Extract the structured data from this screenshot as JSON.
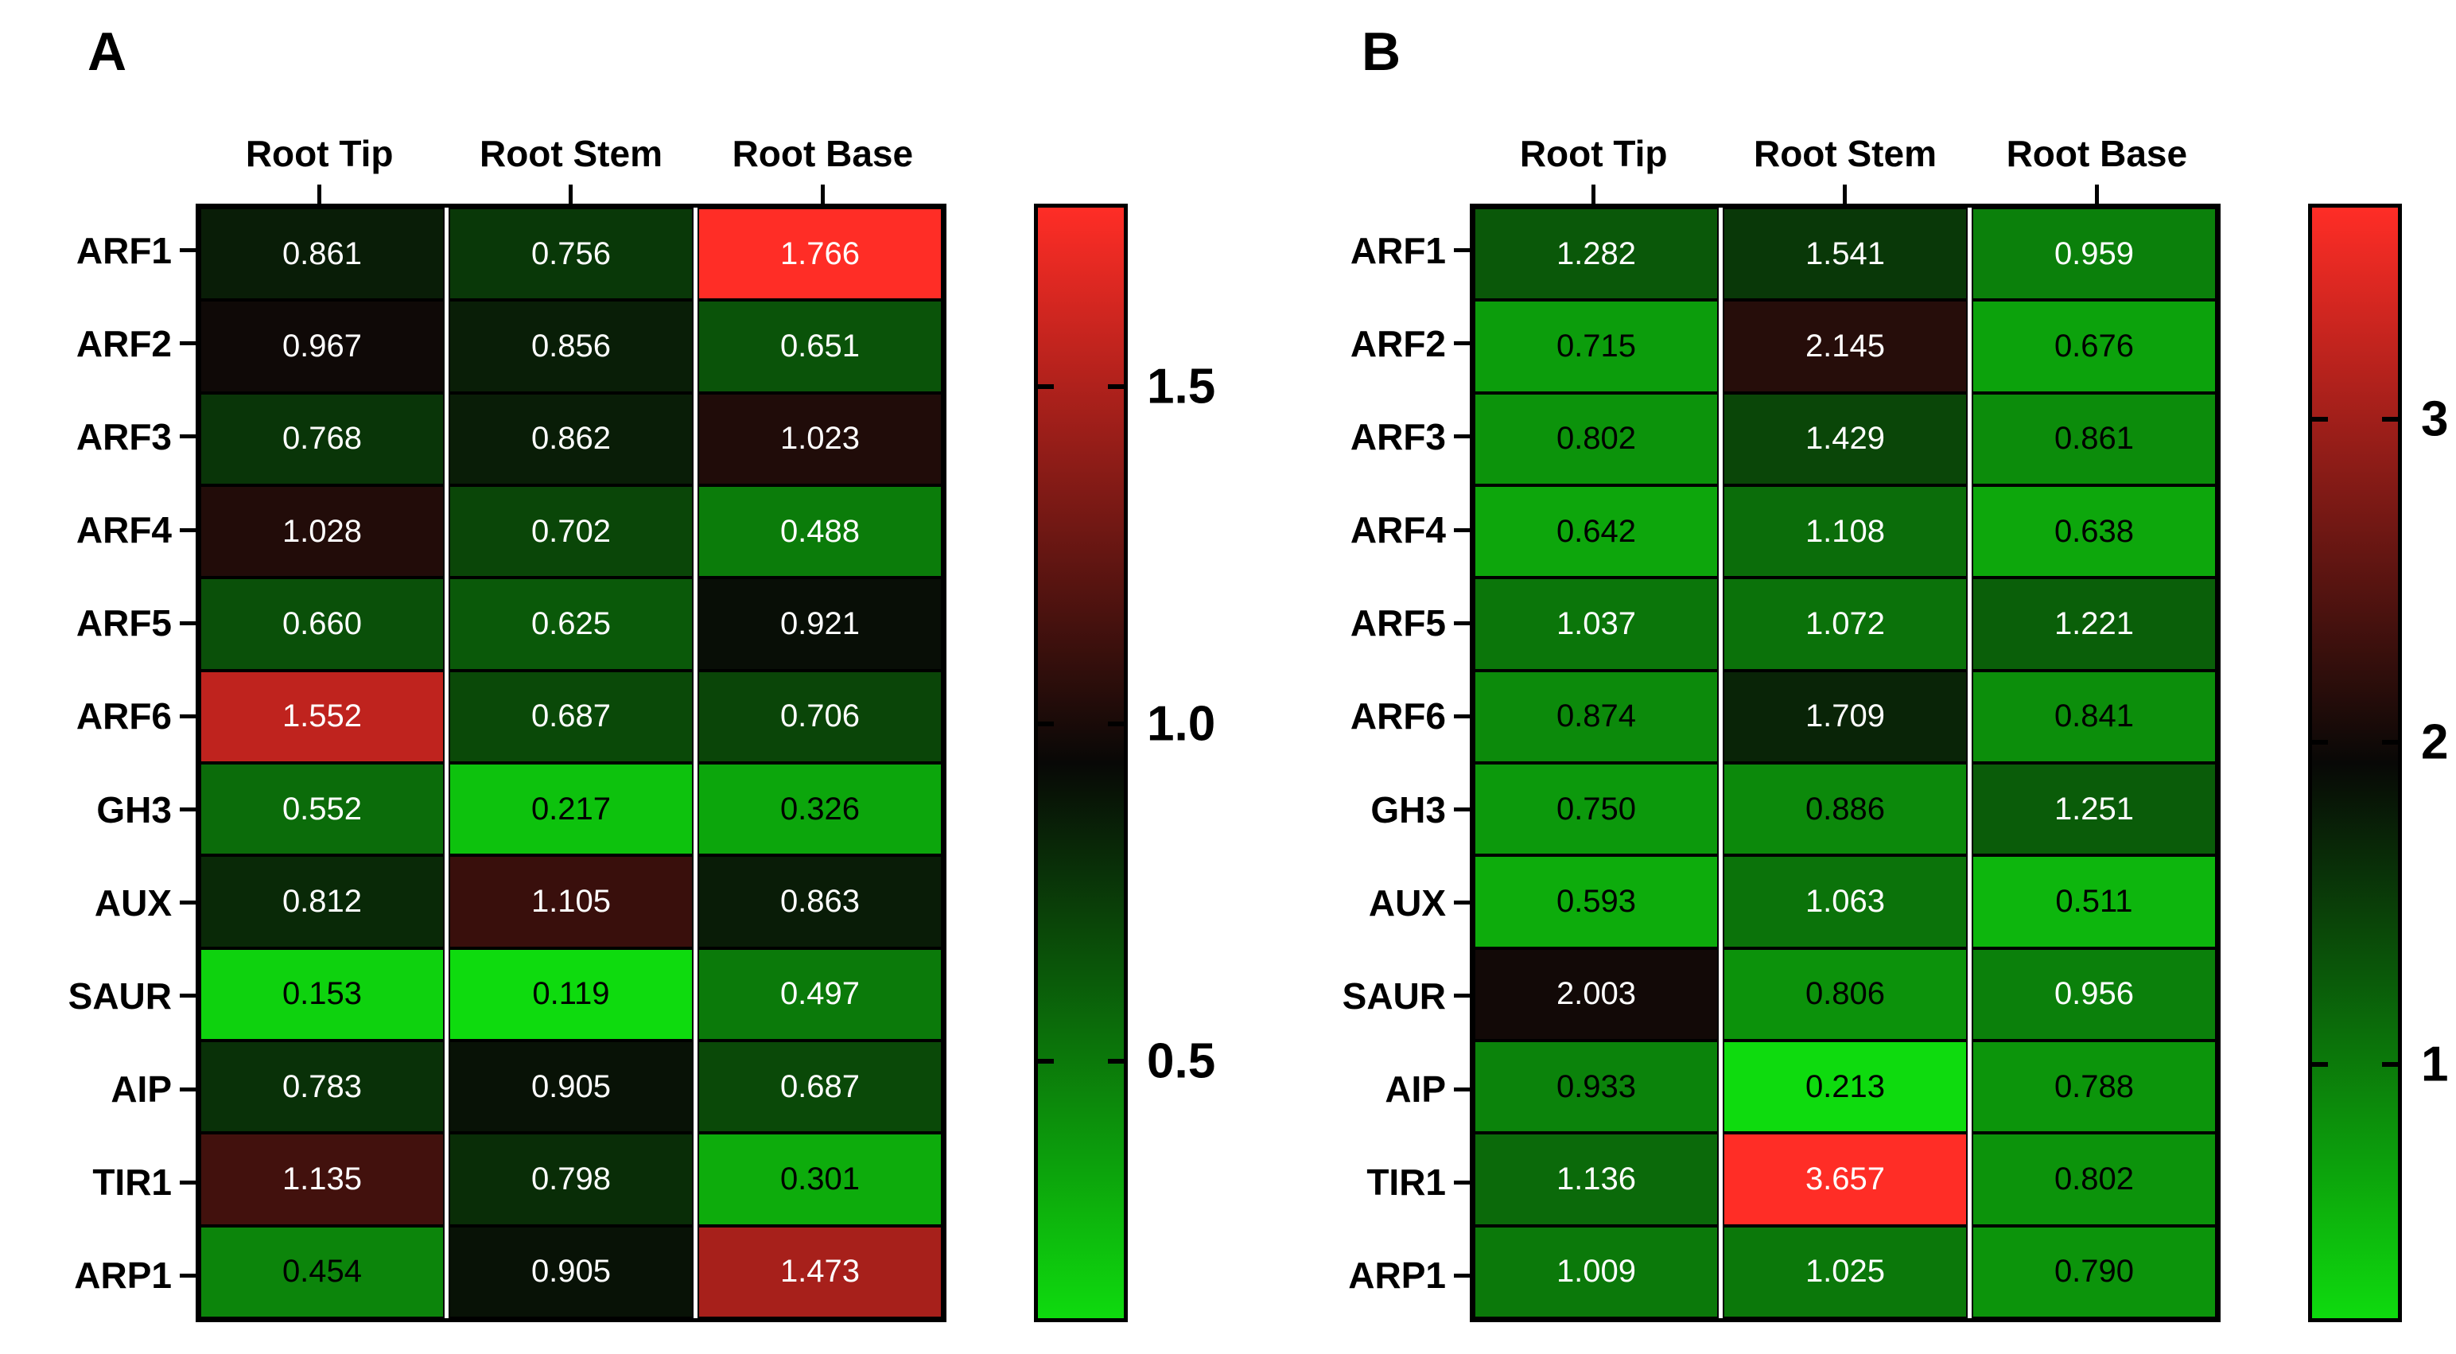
{
  "figure": {
    "background": "#FFFFFF",
    "panel_labels": [
      "A",
      "B"
    ]
  },
  "chart_data": [
    {
      "type": "heatmap",
      "panel": "A",
      "columns": [
        "Root Tip",
        "Root Stem",
        "Root Base"
      ],
      "rows": [
        "ARF1",
        "ARF2",
        "ARF3",
        "ARF4",
        "ARF5",
        "ARF6",
        "GH3",
        "AUX",
        "SAUR",
        "AIP",
        "TIR1",
        "ARP1"
      ],
      "values": [
        [
          0.861,
          0.756,
          1.766
        ],
        [
          0.967,
          0.856,
          0.651
        ],
        [
          0.768,
          0.862,
          1.023
        ],
        [
          1.028,
          0.702,
          0.488
        ],
        [
          0.66,
          0.625,
          0.921
        ],
        [
          1.552,
          0.687,
          0.706
        ],
        [
          0.552,
          0.217,
          0.326
        ],
        [
          0.812,
          1.105,
          0.863
        ],
        [
          0.153,
          0.119,
          0.497
        ],
        [
          0.783,
          0.905,
          0.687
        ],
        [
          1.135,
          0.798,
          0.301
        ],
        [
          0.454,
          0.905,
          1.473
        ]
      ],
      "value_decimals": 3,
      "scale": {
        "min": 0.119,
        "max": 1.766,
        "ticks": [
          {
            "value": 1.5,
            "label": "1.5"
          },
          {
            "value": 1.0,
            "label": "1.0"
          },
          {
            "value": 0.5,
            "label": "0.5"
          }
        ]
      },
      "colors": {
        "low": "#0EDB0E",
        "mid": "#080806",
        "high": "#FF2D26"
      },
      "legend_position": "right",
      "grid": "cell-borders"
    },
    {
      "type": "heatmap",
      "panel": "B",
      "columns": [
        "Root Tip",
        "Root Stem",
        "Root Base"
      ],
      "rows": [
        "ARF1",
        "ARF2",
        "ARF3",
        "ARF4",
        "ARF5",
        "ARF6",
        "GH3",
        "AUX",
        "SAUR",
        "AIP",
        "TIR1",
        "ARP1"
      ],
      "values": [
        [
          1.282,
          1.541,
          0.959
        ],
        [
          0.715,
          2.145,
          0.676
        ],
        [
          0.802,
          1.429,
          0.861
        ],
        [
          0.642,
          1.108,
          0.638
        ],
        [
          1.037,
          1.072,
          1.221
        ],
        [
          0.874,
          1.709,
          0.841
        ],
        [
          0.75,
          0.886,
          1.251
        ],
        [
          0.593,
          1.063,
          0.511
        ],
        [
          2.003,
          0.806,
          0.956
        ],
        [
          0.933,
          0.213,
          0.788
        ],
        [
          1.136,
          3.657,
          0.802
        ],
        [
          1.009,
          1.025,
          0.79
        ]
      ],
      "value_decimals": 3,
      "scale": {
        "min": 0.213,
        "max": 3.657,
        "ticks": [
          {
            "value": 3,
            "label": "3"
          },
          {
            "value": 2,
            "label": "2"
          },
          {
            "value": 1,
            "label": "1"
          }
        ]
      },
      "colors": {
        "low": "#0EDB0E",
        "mid": "#080806",
        "high": "#FF2D26"
      },
      "legend_position": "right",
      "grid": "cell-borders"
    }
  ]
}
